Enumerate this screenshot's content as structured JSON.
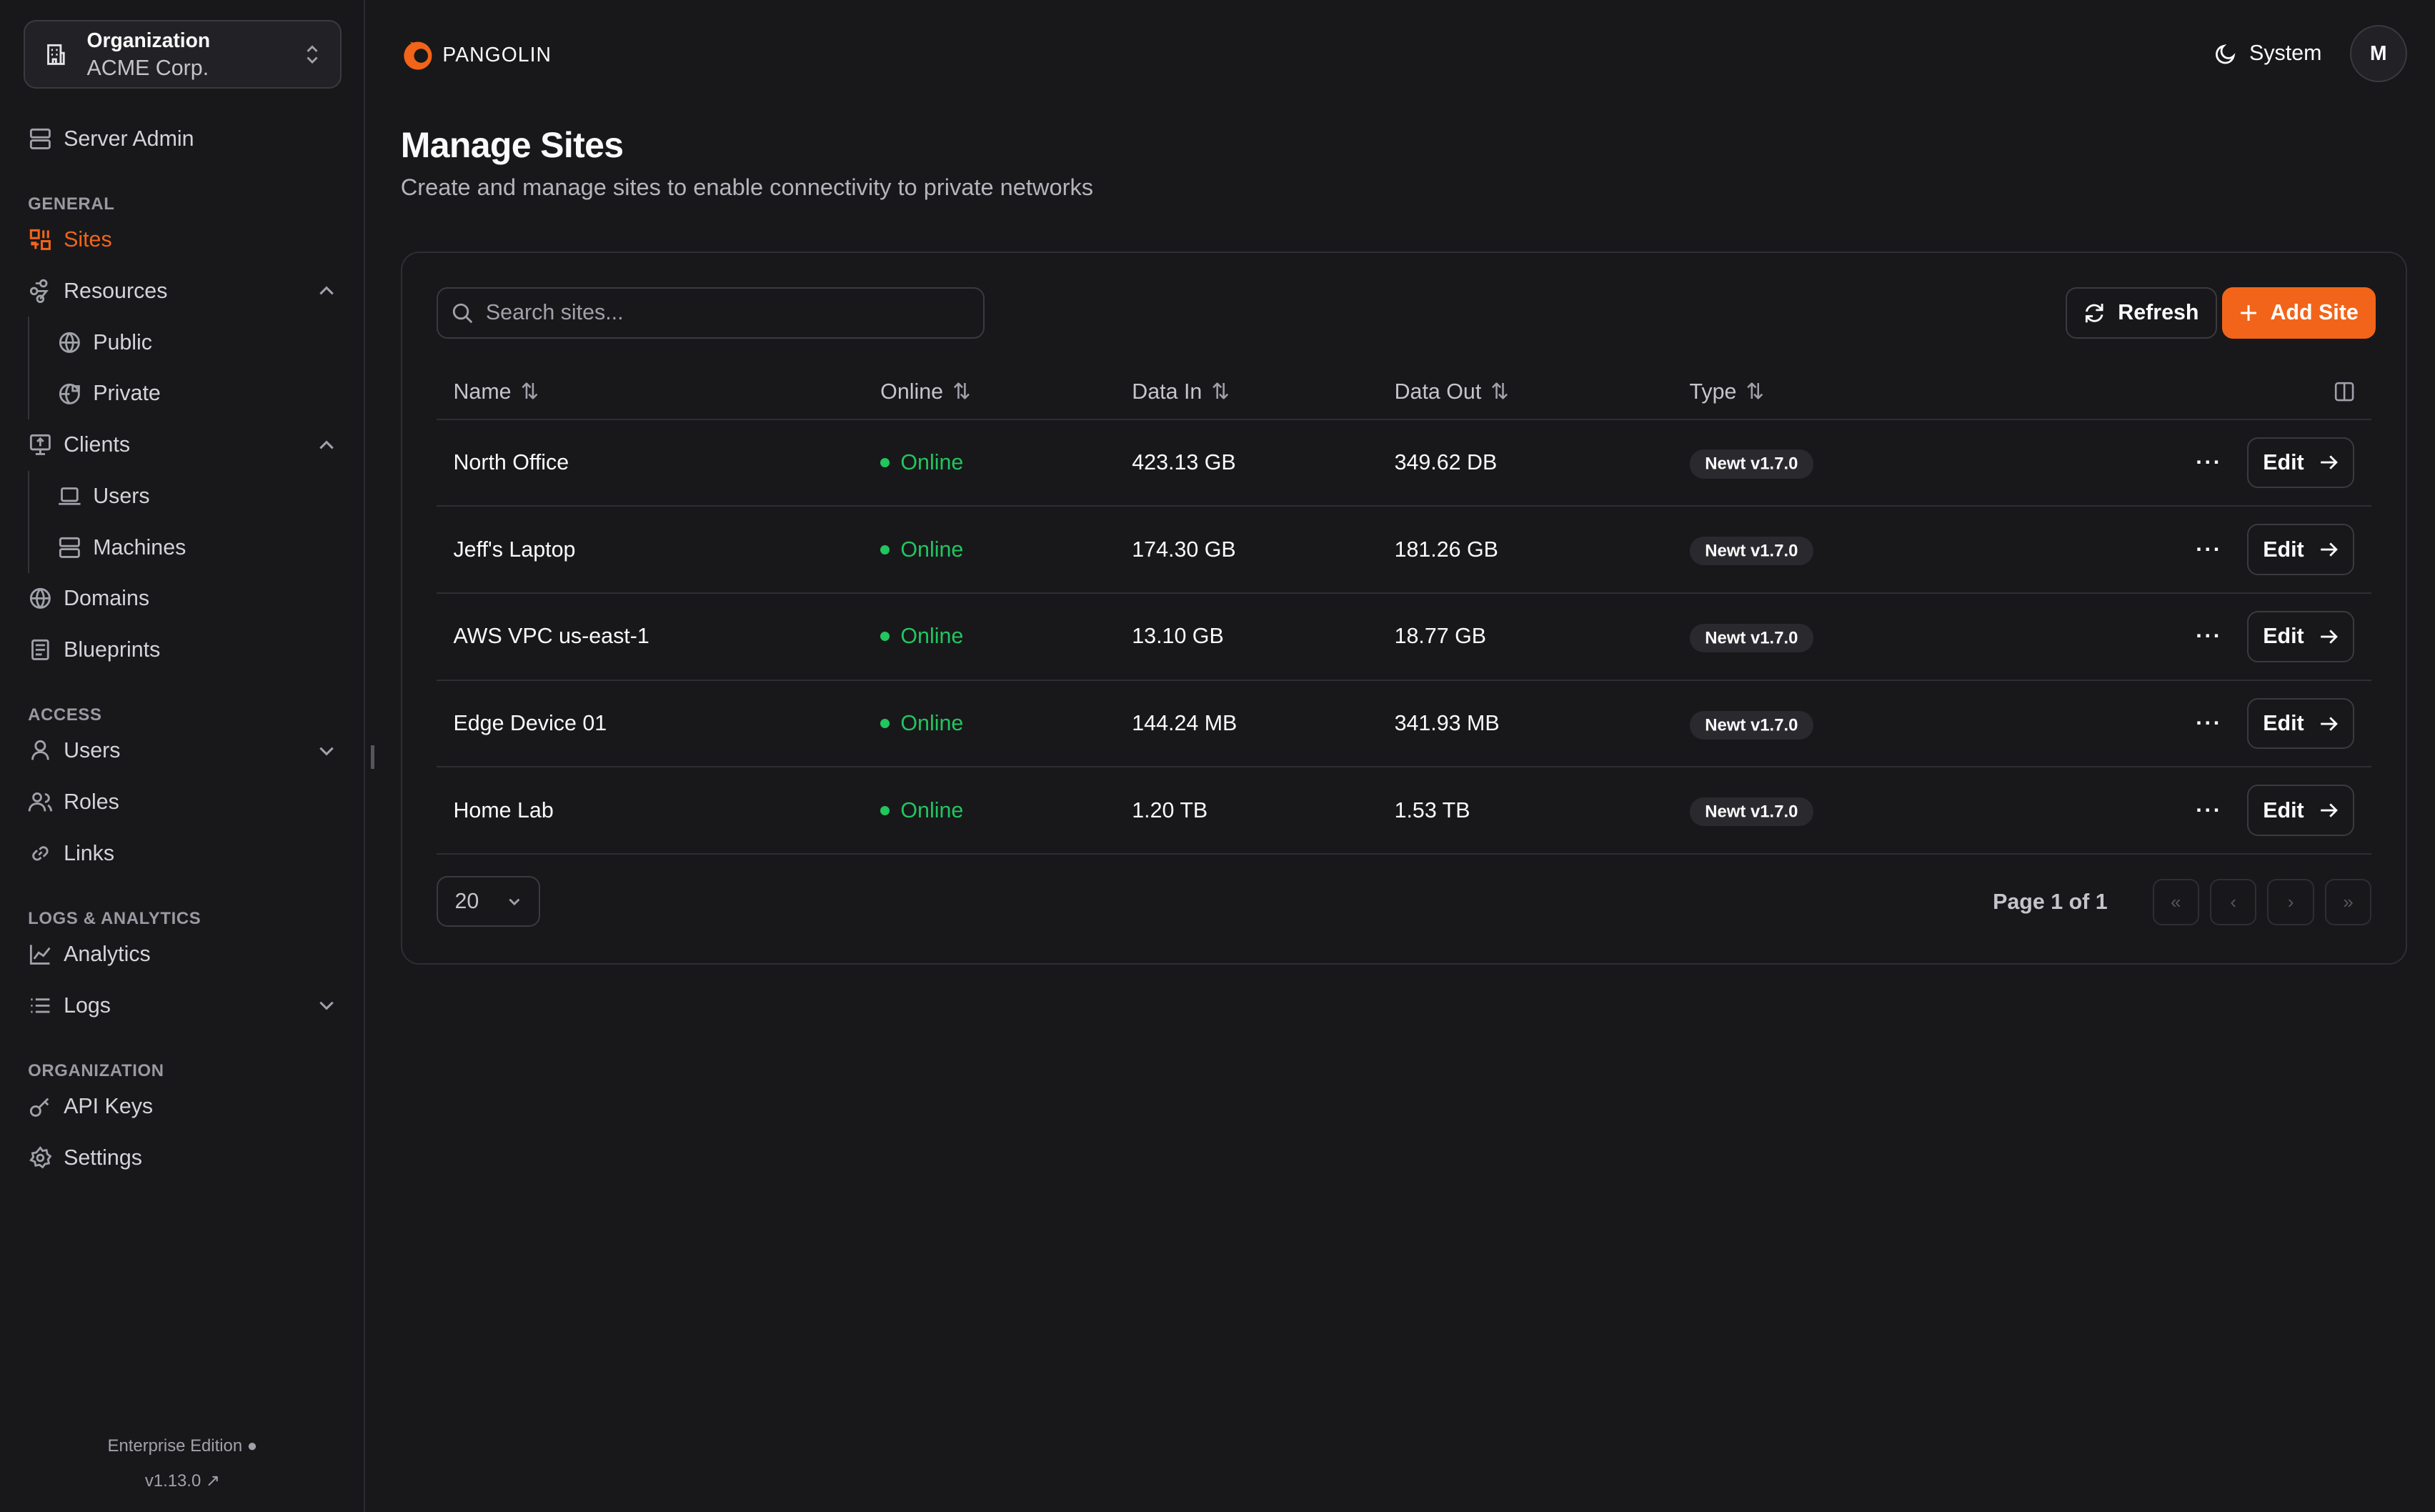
{
  "sidebar": {
    "org": {
      "label": "Organization",
      "name": "ACME Corp."
    },
    "server_admin": "Server Admin",
    "sections": {
      "general": "GENERAL",
      "access": "ACCESS",
      "logs": "LOGS & ANALYTICS",
      "organization": "ORGANIZATION"
    },
    "items": {
      "sites": "Sites",
      "resources": "Resources",
      "public": "Public",
      "private": "Private",
      "clients": "Clients",
      "users_client": "Users",
      "machines": "Machines",
      "domains": "Domains",
      "blueprints": "Blueprints",
      "users": "Users",
      "roles": "Roles",
      "links": "Links",
      "analytics": "Analytics",
      "logs": "Logs",
      "api_keys": "API Keys",
      "settings": "Settings"
    },
    "footer": {
      "edition": "Enterprise Edition",
      "version": "v1.13.0"
    }
  },
  "header": {
    "brand": "PANGOLIN",
    "theme": "System",
    "avatar": "M"
  },
  "page": {
    "title": "Manage Sites",
    "subtitle": "Create and manage sites to enable connectivity to private networks"
  },
  "toolbar": {
    "search_placeholder": "Search sites...",
    "refresh": "Refresh",
    "add": "Add Site"
  },
  "table": {
    "columns": [
      "Name",
      "Online",
      "Data In",
      "Data Out",
      "Type"
    ],
    "rows": [
      {
        "name": "North Office",
        "online": "Online",
        "data_in": "423.13 GB",
        "data_out": "349.62 DB",
        "type": "Newt v1.7.0",
        "edit": "Edit"
      },
      {
        "name": "Jeff's Laptop",
        "online": "Online",
        "data_in": "174.30 GB",
        "data_out": "181.26 GB",
        "type": "Newt v1.7.0",
        "edit": "Edit"
      },
      {
        "name": "AWS VPC us-east-1",
        "online": "Online",
        "data_in": "13.10 GB",
        "data_out": "18.77 GB",
        "type": "Newt v1.7.0",
        "edit": "Edit"
      },
      {
        "name": "Edge Device 01",
        "online": "Online",
        "data_in": "144.24 MB",
        "data_out": "341.93 MB",
        "type": "Newt v1.7.0",
        "edit": "Edit"
      },
      {
        "name": "Home Lab",
        "online": "Online",
        "data_in": "1.20 TB",
        "data_out": "1.53 TB",
        "type": "Newt v1.7.0",
        "edit": "Edit"
      }
    ]
  },
  "pagination": {
    "page_size": "20",
    "page_label": "Page 1 of 1"
  },
  "colors": {
    "accent": "#f26419",
    "online": "#22c55e",
    "background": "#18181b"
  }
}
